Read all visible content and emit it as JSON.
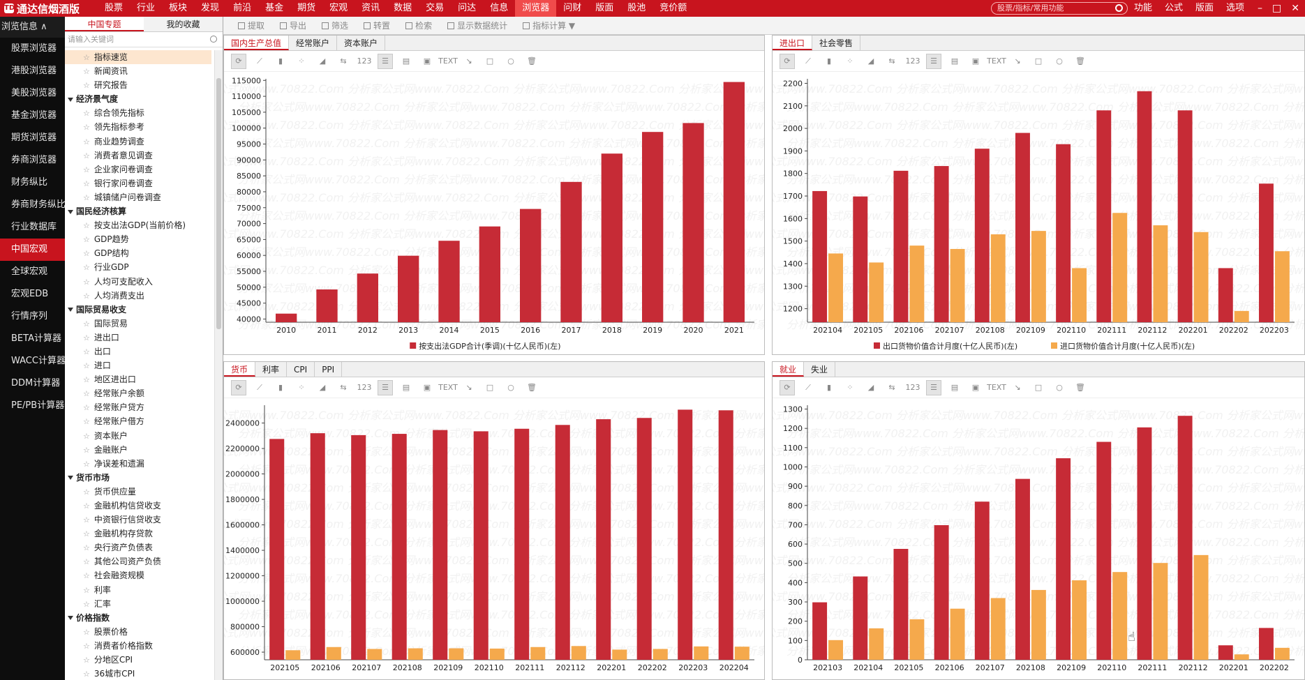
{
  "app": {
    "title": "通达信烟酒版",
    "logo_mark": "TDX"
  },
  "top_menu": [
    "股票",
    "行业",
    "板块",
    "发现",
    "前沿",
    "基金",
    "期货",
    "宏观",
    "资讯",
    "数据",
    "交易",
    "问达",
    "信息",
    "浏览器",
    "问财",
    "版面",
    "股池",
    "竞价额"
  ],
  "top_menu_active": "浏览器",
  "search": {
    "placeholder": "股票/指标/常用功能"
  },
  "top_right": [
    "功能",
    "公式",
    "版面",
    "选项"
  ],
  "window_buttons": [
    "–",
    "□",
    "✕"
  ],
  "left_nav": {
    "header": "浏览信息 ∧",
    "items": [
      "股票浏览器",
      "港股浏览器",
      "美股浏览器",
      "基金浏览器",
      "期货浏览器",
      "券商浏览器",
      "财务纵比",
      "券商财务纵比",
      "行业数据库",
      "中国宏观",
      "全球宏观",
      "宏观EDB",
      "行情序列",
      "BETA计算器",
      "WACC计算器",
      "DDM计算器",
      "PE/PB计算器"
    ],
    "active": "中国宏观"
  },
  "tree": {
    "tabs": [
      "中国专题",
      "我的收藏"
    ],
    "active_tab": "中国专题",
    "search_placeholder": "请输入关键词",
    "rows": [
      {
        "type": "leaf",
        "label": "指标速览",
        "selected": true
      },
      {
        "type": "leaf",
        "label": "新闻资讯"
      },
      {
        "type": "leaf",
        "label": "研究报告"
      },
      {
        "type": "cat",
        "label": "经济景气度"
      },
      {
        "type": "leaf",
        "label": "综合领先指标"
      },
      {
        "type": "leaf",
        "label": "领先指标参考"
      },
      {
        "type": "leaf",
        "label": "商业趋势调查"
      },
      {
        "type": "leaf",
        "label": "消费者意见调查"
      },
      {
        "type": "leaf",
        "label": "企业家问卷调查"
      },
      {
        "type": "leaf",
        "label": "银行家问卷调查"
      },
      {
        "type": "leaf",
        "label": "城镇储户问卷调查"
      },
      {
        "type": "cat",
        "label": "国民经济核算"
      },
      {
        "type": "leaf",
        "label": "按支出法GDP(当前价格)"
      },
      {
        "type": "leaf",
        "label": "GDP趋势"
      },
      {
        "type": "leaf",
        "label": "GDP结构"
      },
      {
        "type": "leaf",
        "label": "行业GDP"
      },
      {
        "type": "leaf",
        "label": "人均可支配收入"
      },
      {
        "type": "leaf",
        "label": "人均消费支出"
      },
      {
        "type": "cat",
        "label": "国际贸易收支"
      },
      {
        "type": "leaf",
        "label": "国际贸易"
      },
      {
        "type": "leaf",
        "label": "进出口"
      },
      {
        "type": "leaf",
        "label": "出口"
      },
      {
        "type": "leaf",
        "label": "进口"
      },
      {
        "type": "leaf",
        "label": "地区进出口"
      },
      {
        "type": "leaf",
        "label": "经常账户余额"
      },
      {
        "type": "leaf",
        "label": "经常账户贷方"
      },
      {
        "type": "leaf",
        "label": "经常账户借方"
      },
      {
        "type": "leaf",
        "label": "资本账户"
      },
      {
        "type": "leaf",
        "label": "金融账户"
      },
      {
        "type": "leaf",
        "label": "净误差和遗漏"
      },
      {
        "type": "cat",
        "label": "货币市场"
      },
      {
        "type": "leaf",
        "label": "货币供应量"
      },
      {
        "type": "leaf",
        "label": "金融机构信贷收支"
      },
      {
        "type": "leaf",
        "label": "中资银行信贷收支"
      },
      {
        "type": "leaf",
        "label": "金融机构存贷款"
      },
      {
        "type": "leaf",
        "label": "央行资产负债表"
      },
      {
        "type": "leaf",
        "label": "其他公司资产负债"
      },
      {
        "type": "leaf",
        "label": "社会融资规模"
      },
      {
        "type": "leaf",
        "label": "利率"
      },
      {
        "type": "leaf",
        "label": "汇率"
      },
      {
        "type": "cat",
        "label": "价格指数"
      },
      {
        "type": "leaf",
        "label": "股票价格"
      },
      {
        "type": "leaf",
        "label": "消费者价格指数"
      },
      {
        "type": "leaf",
        "label": "分地区CPI"
      },
      {
        "type": "leaf",
        "label": "36城市CPI"
      }
    ]
  },
  "main_toolbar": [
    "提取",
    "导出",
    "筛选",
    "转置",
    "检索",
    "显示数据统计",
    "指标计算 ▼"
  ],
  "chart_tools": [
    "refresh-icon",
    "line-icon",
    "bar-icon",
    "scatter-icon",
    "area-icon",
    "swap-icon",
    "number-icon",
    "list-icon",
    "table-icon",
    "image-icon",
    "text-icon",
    "arrow-icon",
    "rect-icon",
    "ellipse-icon",
    "delete-icon"
  ],
  "chart_tool_labels": {
    "number": "123",
    "text": "TEXT"
  },
  "watermark": "分析家公式网www.70822.Com",
  "panels": [
    {
      "tabs": [
        "国内生产总值",
        "经常账户",
        "资本账户"
      ],
      "active_tab": "国内生产总值"
    },
    {
      "tabs": [
        "进出口",
        "社会零售"
      ],
      "active_tab": "进出口"
    },
    {
      "tabs": [
        "货币",
        "利率",
        "CPI",
        "PPI"
      ],
      "active_tab": "货币"
    },
    {
      "tabs": [
        "就业",
        "失业"
      ],
      "active_tab": "就业"
    }
  ],
  "chart_data": [
    {
      "type": "bar",
      "categories": [
        "2010",
        "2011",
        "2012",
        "2013",
        "2014",
        "2015",
        "2016",
        "2017",
        "2018",
        "2019",
        "2020",
        "2021"
      ],
      "series": [
        {
          "name": "按支出法GDP合计(季调)(十亿人民币)(左)",
          "values": [
            41700,
            49300,
            54300,
            59900,
            64600,
            69100,
            74600,
            83100,
            92000,
            98800,
            101600,
            114500
          ],
          "color": "#c62b36"
        }
      ],
      "ylim": [
        39000,
        115500
      ],
      "yticks": [
        40000,
        45000,
        50000,
        55000,
        60000,
        65000,
        70000,
        75000,
        80000,
        85000,
        90000,
        95000,
        100000,
        105000,
        110000,
        115000
      ]
    },
    {
      "type": "bar",
      "categories": [
        "202104",
        "202105",
        "202106",
        "202107",
        "202108",
        "202109",
        "202110",
        "202111",
        "202112",
        "202201",
        "202202",
        "202203"
      ],
      "series": [
        {
          "name": "出口货物价值合计月度(十亿人民币)(左)",
          "values": [
            1722,
            1698,
            1812,
            1833,
            1910,
            1980,
            1930,
            2080,
            2165,
            2080,
            1380,
            1755
          ],
          "color": "#c62b36"
        },
        {
          "name": "进口货物价值合计月度(十亿人民币)(左)",
          "values": [
            1445,
            1405,
            1480,
            1465,
            1530,
            1545,
            1380,
            1625,
            1570,
            1540,
            1190,
            1455
          ],
          "color": "#f5a94c"
        }
      ],
      "ylim": [
        1140,
        2220
      ],
      "yticks": [
        1200,
        1300,
        1400,
        1500,
        1600,
        1700,
        1800,
        1900,
        2000,
        2100,
        2200
      ]
    },
    {
      "type": "bar",
      "categories": [
        "202105",
        "202106",
        "202107",
        "202108",
        "202109",
        "202110",
        "202111",
        "202112",
        "202201",
        "202202",
        "202203",
        "202204"
      ],
      "series": [
        {
          "name": "",
          "values": [
            2275000,
            2320000,
            2305000,
            2315000,
            2345000,
            2335000,
            2355000,
            2385000,
            2430000,
            2440000,
            2505000,
            2500000
          ],
          "color": "#c62b36"
        },
        {
          "name": "",
          "values": [
            615000,
            640000,
            625000,
            630000,
            630000,
            628000,
            640000,
            648000,
            620000,
            625000,
            645000,
            643000
          ],
          "color": "#f5a94c"
        }
      ],
      "ylim": [
        540000,
        2540000
      ],
      "yticks": [
        600000,
        800000,
        1000000,
        1200000,
        1400000,
        1600000,
        1800000,
        2000000,
        2200000,
        2400000
      ]
    },
    {
      "type": "bar",
      "categories": [
        "202103",
        "202104",
        "202105",
        "202106",
        "202107",
        "202108",
        "202109",
        "202110",
        "202111",
        "202112",
        "202201",
        "202202"
      ],
      "series": [
        {
          "name": "",
          "values": [
            298,
            432,
            575,
            698,
            820,
            938,
            1045,
            1130,
            1205,
            1265,
            75,
            165
          ],
          "color": "#c62b36"
        },
        {
          "name": "",
          "values": [
            102,
            163,
            210,
            265,
            320,
            362,
            412,
            455,
            502,
            543,
            28,
            62
          ],
          "color": "#f5a94c"
        }
      ],
      "ylim": [
        0,
        1320
      ],
      "yticks": [
        0,
        100,
        200,
        300,
        400,
        500,
        600,
        700,
        800,
        900,
        1000,
        1100,
        1200,
        1300
      ]
    }
  ]
}
